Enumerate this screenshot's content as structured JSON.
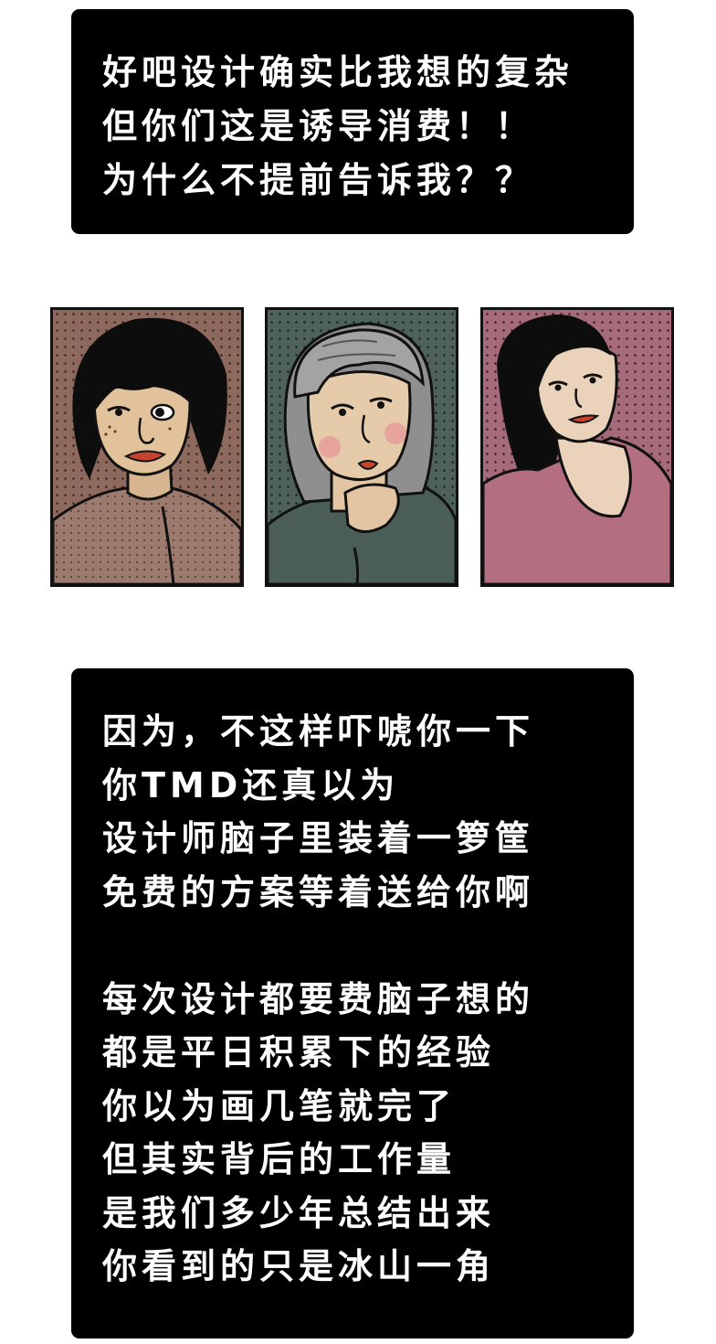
{
  "top_caption": {
    "lines": [
      "好吧设计确实比我想的复杂",
      "但你们这是诱导消费！！",
      "为什么不提前告诉我？？"
    ]
  },
  "panels": [
    {
      "character": "short-black-haired-woman",
      "bg_color": "#8e6a5e",
      "dot_color": "#3a2a24",
      "clothes_color": "#9d7a6e"
    },
    {
      "character": "gray-haired-woman-hand-on-chin",
      "bg_color": "#4e615b",
      "dot_color": "#1c2623",
      "clothes_color": "#4a5d57"
    },
    {
      "character": "long-haired-woman-pink-top",
      "bg_color": "#a56b7a",
      "dot_color": "#3e2028",
      "clothes_color": "#b36e80"
    }
  ],
  "bottom_caption": {
    "paragraph1": [
      "因为，不这样吓唬你一下",
      "你TMD还真以为",
      "设计师脑子里装着一箩筐",
      "免费的方案等着送给你啊"
    ],
    "paragraph2": [
      "每次设计都要费脑子想的",
      "都是平日积累下的经验",
      "你以为画几笔就完了",
      "但其实背后的工作量",
      "是我们多少年总结出来",
      "你看到的只是冰山一角"
    ]
  }
}
